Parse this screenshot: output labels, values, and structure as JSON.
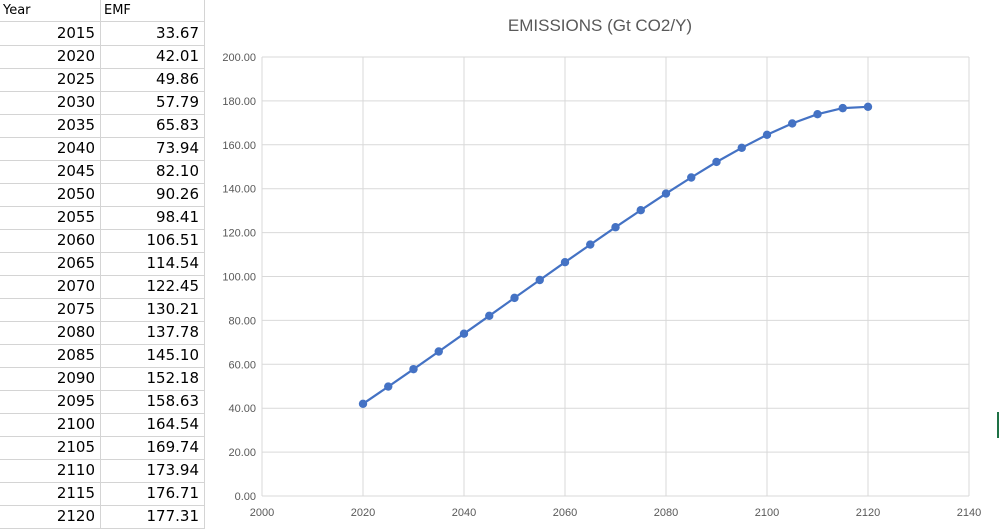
{
  "sheet": {
    "headers": [
      "Year",
      "EMF"
    ],
    "rows": [
      [
        "2015",
        "33.67"
      ],
      [
        "2020",
        "42.01"
      ],
      [
        "2025",
        "49.86"
      ],
      [
        "2030",
        "57.79"
      ],
      [
        "2035",
        "65.83"
      ],
      [
        "2040",
        "73.94"
      ],
      [
        "2045",
        "82.10"
      ],
      [
        "2050",
        "90.26"
      ],
      [
        "2055",
        "98.41"
      ],
      [
        "2060",
        "106.51"
      ],
      [
        "2065",
        "114.54"
      ],
      [
        "2070",
        "122.45"
      ],
      [
        "2075",
        "130.21"
      ],
      [
        "2080",
        "137.78"
      ],
      [
        "2085",
        "145.10"
      ],
      [
        "2090",
        "152.18"
      ],
      [
        "2095",
        "158.63"
      ],
      [
        "2100",
        "164.54"
      ],
      [
        "2105",
        "169.74"
      ],
      [
        "2110",
        "173.94"
      ],
      [
        "2115",
        "176.71"
      ],
      [
        "2120",
        "177.31"
      ]
    ]
  },
  "colors": {
    "series": "#4472c4",
    "grid": "#d9d9d9",
    "text": "#595959",
    "cell_border": "#d4d4d4"
  },
  "chart_data": {
    "type": "scatter",
    "title": "EMISSIONS (Gt CO2/Y)",
    "xlabel": "",
    "ylabel": "",
    "xlim": [
      2000,
      2140
    ],
    "ylim": [
      0,
      200
    ],
    "x_ticks": [
      2000,
      2020,
      2040,
      2060,
      2080,
      2100,
      2120,
      2140
    ],
    "x_tick_labels": [
      "2000",
      "2020",
      "2040",
      "2060",
      "2080",
      "2100",
      "2120",
      "2140"
    ],
    "y_ticks": [
      0,
      20,
      40,
      60,
      80,
      100,
      120,
      140,
      160,
      180,
      200
    ],
    "y_tick_labels": [
      "0.00",
      "20.00",
      "40.00",
      "60.00",
      "80.00",
      "100.00",
      "120.00",
      "140.00",
      "160.00",
      "180.00",
      "200.00"
    ],
    "grid": "vertical and horizontal major gridlines",
    "legend": "none",
    "series": [
      {
        "x": [
          2020,
          2025,
          2030,
          2035,
          2040,
          2045,
          2050,
          2055,
          2060,
          2065,
          2070,
          2075,
          2080,
          2085,
          2090,
          2095,
          2100,
          2105,
          2110,
          2115,
          2120
        ],
        "y": [
          42.01,
          49.86,
          57.79,
          65.83,
          73.94,
          82.1,
          90.26,
          98.41,
          106.51,
          114.54,
          122.45,
          130.21,
          137.78,
          145.1,
          152.18,
          158.63,
          164.54,
          169.74,
          173.94,
          176.71,
          177.31
        ],
        "style": "line with markers"
      }
    ]
  }
}
